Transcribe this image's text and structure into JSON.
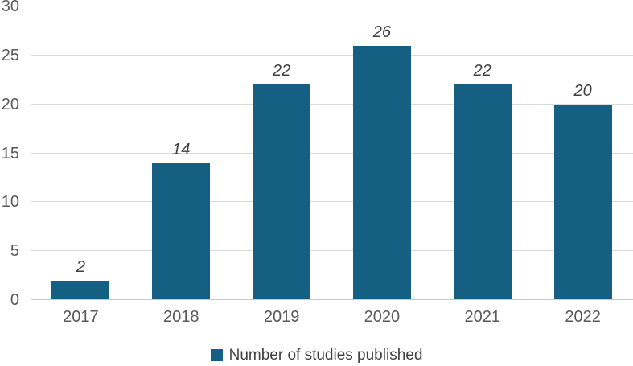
{
  "chart_data": {
    "type": "bar",
    "title": "",
    "xlabel": "",
    "ylabel": "",
    "categories": [
      "2017",
      "2018",
      "2019",
      "2020",
      "2021",
      "2022"
    ],
    "series": [
      {
        "name": "Number of studies published",
        "values": [
          2,
          14,
          22,
          26,
          22,
          20
        ]
      }
    ],
    "data_labels": [
      "2",
      "14",
      "22",
      "26",
      "22",
      "20"
    ],
    "ylim": [
      0,
      30
    ],
    "ytick_step": 5,
    "yticks": [
      "0",
      "5",
      "10",
      "15",
      "20",
      "25",
      "30"
    ],
    "grid": true,
    "legend_position": "bottom",
    "legend_label": "Number of studies published",
    "colors": {
      "bar": "#156082",
      "gridline": "#d9d9d9",
      "axis_line": "#c8c8c8",
      "tick_label": "#595959",
      "data_label": "#404040",
      "legend_label": "#404040",
      "background": "#ffffff"
    }
  }
}
